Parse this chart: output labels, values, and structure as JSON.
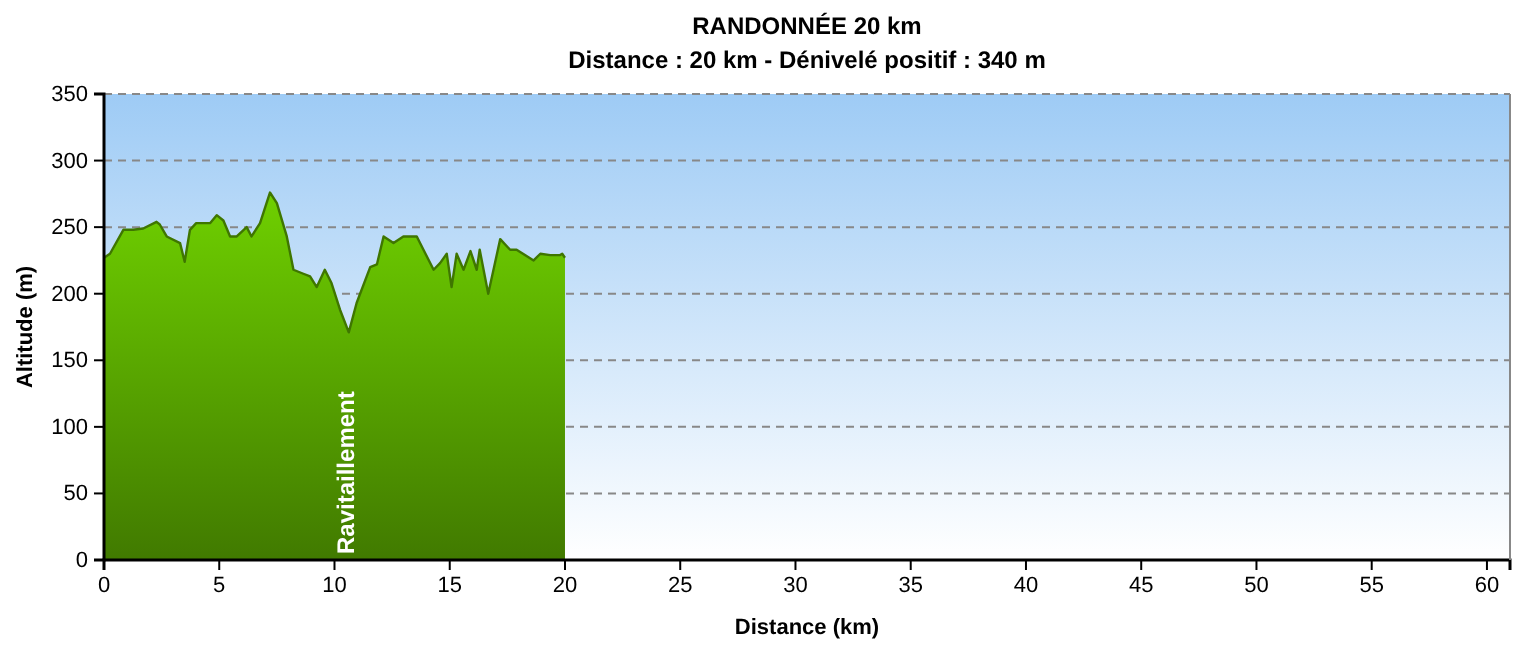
{
  "chart_data": {
    "type": "area",
    "title": "RANDONNÉE 20 km",
    "subtitle": "Distance : 20 km - Dénivelé positif : 340 m",
    "xlabel": "Distance (km)",
    "ylabel": "Altitude (m)",
    "x": [
      0,
      0.26,
      0.84,
      1.27,
      1.7,
      2.28,
      2.42,
      2.72,
      3.3,
      3.5,
      3.73,
      4.0,
      4.6,
      4.89,
      5.18,
      5.47,
      5.76,
      6.19,
      6.4,
      6.77,
      7.2,
      7.5,
      7.93,
      8.22,
      8.65,
      8.94,
      9.23,
      9.58,
      9.87,
      10.24,
      10.62,
      10.96,
      11.55,
      11.84,
      12.13,
      12.56,
      12.99,
      13.57,
      13.86,
      14.3,
      14.58,
      14.87,
      15.08,
      15.3,
      15.6,
      15.9,
      16.17,
      16.3,
      16.67,
      17.19,
      17.62,
      17.9,
      18.64,
      18.93,
      19.36,
      19.79,
      19.88,
      20
    ],
    "series": [
      {
        "color": "#5aa800",
        "values": [
          227,
          230,
          248,
          248,
          249,
          254,
          252,
          243,
          238,
          224,
          248,
          253,
          253,
          259,
          255,
          243,
          243,
          250,
          243,
          253,
          276,
          268,
          243,
          218,
          215,
          213,
          205,
          218,
          208,
          188,
          171,
          193,
          220,
          222,
          243,
          238,
          243,
          243,
          233,
          218,
          223,
          230,
          205,
          230,
          218,
          232,
          218,
          233,
          200,
          241,
          233,
          233,
          225,
          230,
          229,
          229,
          230,
          227
        ]
      }
    ],
    "xlim": [
      0,
      61
    ],
    "xticks": [
      0,
      5,
      10,
      15,
      20,
      25,
      30,
      35,
      40,
      45,
      50,
      55,
      60
    ],
    "ylim": [
      0,
      350
    ],
    "yticks": [
      0,
      50,
      100,
      150,
      200,
      250,
      300,
      350
    ],
    "grid": "y",
    "annotations": [
      {
        "text": "Ravitaillement",
        "x": 10.5,
        "y": 0
      }
    ]
  }
}
